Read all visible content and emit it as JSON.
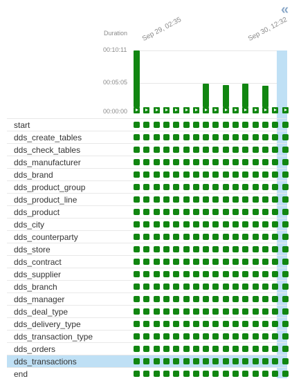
{
  "toolbar": {
    "collapse_glyph": "«"
  },
  "chart": {
    "title": "Duration",
    "y_ticks": [
      "00:10:11",
      "00:05:05",
      "00:00:00"
    ],
    "date_labels": [
      "Sep 29, 02:35",
      "Sep 30, 12:32"
    ]
  },
  "chart_data": {
    "type": "bar",
    "ylabel": "Duration",
    "ylim_seconds": [
      0,
      611
    ],
    "run_durations_seconds": [
      611,
      0,
      0,
      0,
      0,
      0,
      0,
      255,
      0,
      240,
      0,
      255,
      0,
      230,
      0,
      0
    ],
    "selected_run_index": 15
  },
  "tasks": [
    {
      "label": "start"
    },
    {
      "label": "dds_create_tables"
    },
    {
      "label": "dds_check_tables"
    },
    {
      "label": "dds_manufacturer"
    },
    {
      "label": "dds_brand"
    },
    {
      "label": "dds_product_group"
    },
    {
      "label": "dds_product_line"
    },
    {
      "label": "dds_product"
    },
    {
      "label": "dds_city"
    },
    {
      "label": "dds_counterparty"
    },
    {
      "label": "dds_store"
    },
    {
      "label": "dds_contract"
    },
    {
      "label": "dds_supplier"
    },
    {
      "label": "dds_branch"
    },
    {
      "label": "dds_manager"
    },
    {
      "label": "dds_deal_type"
    },
    {
      "label": "dds_delivery_type"
    },
    {
      "label": "dds_transaction_type"
    },
    {
      "label": "dds_orders"
    },
    {
      "label": "dds_transactions",
      "selected": true
    },
    {
      "label": "end"
    }
  ],
  "colors": {
    "success": "#118611",
    "selected": "#bfe0f5",
    "muted": "#8a8a8a"
  }
}
